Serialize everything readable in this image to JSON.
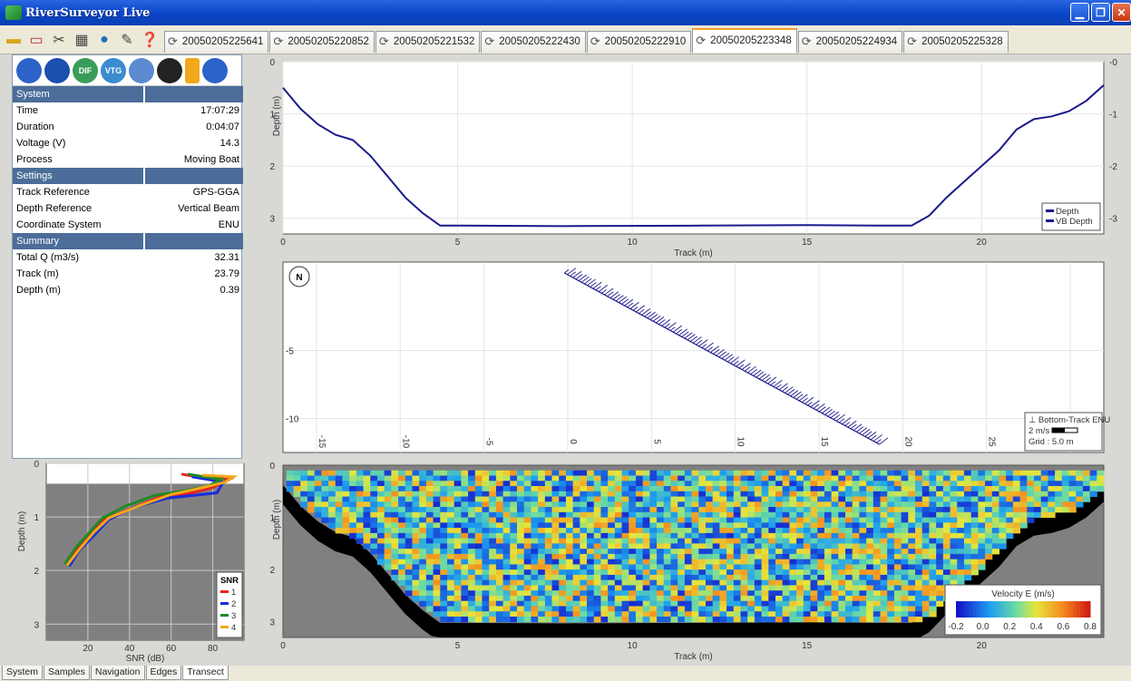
{
  "window": {
    "title": "RiverSurveyor Live"
  },
  "toolbar": {
    "icons": [
      "open-folder-icon",
      "new-file-icon",
      "tools-icon",
      "grid-icon",
      "globe-icon",
      "notes-icon",
      "help-icon"
    ]
  },
  "file_tabs": [
    {
      "label": "20050205225641",
      "active": false
    },
    {
      "label": "20050205220852",
      "active": false
    },
    {
      "label": "20050205221532",
      "active": false
    },
    {
      "label": "20050205222430",
      "active": false
    },
    {
      "label": "20050205222910",
      "active": false
    },
    {
      "label": "20050205223348",
      "active": true
    },
    {
      "label": "20050205224934",
      "active": false
    },
    {
      "label": "20050205225328",
      "active": false
    }
  ],
  "status_icons": [
    {
      "name": "bluetooth-icon",
      "text": ""
    },
    {
      "name": "footprints-icon",
      "text": ""
    },
    {
      "name": "dif-gps-icon",
      "text": "DIF"
    },
    {
      "name": "vtg-gps-icon",
      "text": "VTG"
    },
    {
      "name": "water-icon",
      "text": ""
    },
    {
      "name": "film-reel-icon",
      "text": ""
    },
    {
      "name": "battery-icon",
      "text": ""
    },
    {
      "name": "refresh-icon",
      "text": ""
    }
  ],
  "system": {
    "header": "System",
    "rows": [
      {
        "label": "Time",
        "value": "17:07:29"
      },
      {
        "label": "Duration",
        "value": "0:04:07"
      },
      {
        "label": "Voltage (V)",
        "value": "14.3"
      },
      {
        "label": "Process",
        "value": "Moving Boat"
      }
    ]
  },
  "settings": {
    "header": "Settings",
    "rows": [
      {
        "label": "Track Reference",
        "value": "GPS-GGA"
      },
      {
        "label": "Depth Reference",
        "value": "Vertical Beam"
      },
      {
        "label": "Coordinate System",
        "value": "ENU"
      }
    ]
  },
  "summary": {
    "header": "Summary",
    "rows": [
      {
        "label": "Total Q (m3/s)",
        "value": "32.31"
      },
      {
        "label": "Track (m)",
        "value": "23.79"
      },
      {
        "label": "Depth (m)",
        "value": "0.39"
      }
    ]
  },
  "chart_data": [
    {
      "type": "line",
      "name": "depth-profile",
      "xlabel": "Track (m)",
      "ylabel": "Depth (m)",
      "xlim": [
        0,
        23.5
      ],
      "ylim": [
        3.3,
        0
      ],
      "xticks": [
        0,
        5,
        10,
        15,
        20
      ],
      "yticks": [
        0,
        1,
        2,
        3
      ],
      "legend": [
        "Depth",
        "VB Depth"
      ],
      "legend_position": "bottom-right",
      "series": [
        {
          "name": "VB Depth",
          "x": [
            0,
            0.5,
            1,
            1.5,
            2,
            2.5,
            3,
            3.5,
            4,
            4.5,
            5,
            8,
            12,
            15,
            17,
            18,
            18.5,
            19,
            19.5,
            20,
            20.5,
            21,
            21.5,
            22,
            22.5,
            23,
            23.5
          ],
          "y": [
            0.5,
            0.9,
            1.2,
            1.4,
            1.5,
            1.8,
            2.2,
            2.6,
            2.9,
            3.14,
            3.14,
            3.15,
            3.14,
            3.13,
            3.14,
            3.14,
            2.95,
            2.6,
            2.3,
            2.0,
            1.7,
            1.3,
            1.1,
            1.05,
            0.95,
            0.75,
            0.45
          ]
        }
      ]
    },
    {
      "type": "scatter",
      "name": "bottom-track",
      "xlim": [
        -17,
        32
      ],
      "ylim": [
        -12.5,
        1.5
      ],
      "xticks": [
        -15,
        -10,
        -5,
        0,
        5,
        10,
        15,
        20,
        25,
        30
      ],
      "yticks": [
        -5,
        -10
      ],
      "legend": [
        "Bottom-Track ENU"
      ],
      "legend_position": "bottom-right",
      "scale_label": "2 m/s",
      "grid_label": "Grid : 5.0 m",
      "north_label": "N",
      "track": {
        "start": [
          -0.2,
          0.7
        ],
        "end": [
          18.6,
          -11.9
        ]
      }
    },
    {
      "type": "heatmap",
      "name": "velocity-contour",
      "xlabel": "Track (m)",
      "ylabel": "Depth (m)",
      "xlim": [
        0,
        23.5
      ],
      "ylim": [
        3.3,
        0
      ],
      "xticks": [
        0,
        5,
        10,
        15,
        20
      ],
      "yticks": [
        0,
        1,
        2,
        3
      ],
      "colorbar_label": "Velocity E (m/s)",
      "colorbar_ticks": [
        "-0.2",
        "0.0",
        "0.2",
        "0.4",
        "0.6",
        "0.8"
      ],
      "colorbar_range": [
        -0.2,
        0.8
      ]
    },
    {
      "type": "line",
      "name": "snr-profile",
      "xlabel": "SNR (dB)",
      "ylabel": "Depth (m)",
      "xlim": [
        0,
        95
      ],
      "ylim": [
        3.3,
        0
      ],
      "xticks": [
        20,
        40,
        60,
        80
      ],
      "yticks": [
        0,
        1,
        2,
        3
      ],
      "legend_title": "SNR",
      "legend_position": "bottom-right",
      "series": [
        {
          "name": "1",
          "color": "#e8211f",
          "x": [
            10,
            15,
            22,
            28,
            40,
            55,
            70,
            80,
            88,
            72,
            65
          ],
          "y": [
            1.9,
            1.6,
            1.3,
            1.05,
            0.85,
            0.62,
            0.55,
            0.45,
            0.3,
            0.25,
            0.2
          ]
        },
        {
          "name": "2",
          "color": "#1a2bdc",
          "x": [
            11,
            16,
            24,
            30,
            42,
            58,
            75,
            82,
            85,
            70
          ],
          "y": [
            1.92,
            1.62,
            1.3,
            1.05,
            0.82,
            0.65,
            0.58,
            0.55,
            0.35,
            0.25
          ]
        },
        {
          "name": "3",
          "color": "#1f8a23",
          "x": [
            9,
            14,
            21,
            27,
            38,
            52,
            68,
            78,
            84,
            68
          ],
          "y": [
            1.88,
            1.58,
            1.28,
            1.02,
            0.8,
            0.6,
            0.5,
            0.42,
            0.3,
            0.2
          ]
        },
        {
          "name": "4",
          "color": "#f2a81b",
          "x": [
            10,
            16,
            23,
            30,
            44,
            60,
            72,
            86,
            90,
            75
          ],
          "y": [
            1.9,
            1.6,
            1.28,
            1.02,
            0.8,
            0.58,
            0.48,
            0.35,
            0.25,
            0.22
          ]
        }
      ]
    }
  ],
  "bottom_tabs": [
    {
      "label": "System",
      "active": false
    },
    {
      "label": "Samples",
      "active": false
    },
    {
      "label": "Navigation",
      "active": false
    },
    {
      "label": "Edges",
      "active": false
    },
    {
      "label": "Transect",
      "active": true
    }
  ],
  "colors": {
    "title_bar": "#0a46c8",
    "section_header": "#4c6d99",
    "depth_line": "#1a1a8c",
    "bottom_fill": "#000000",
    "no_data": "#808080"
  }
}
